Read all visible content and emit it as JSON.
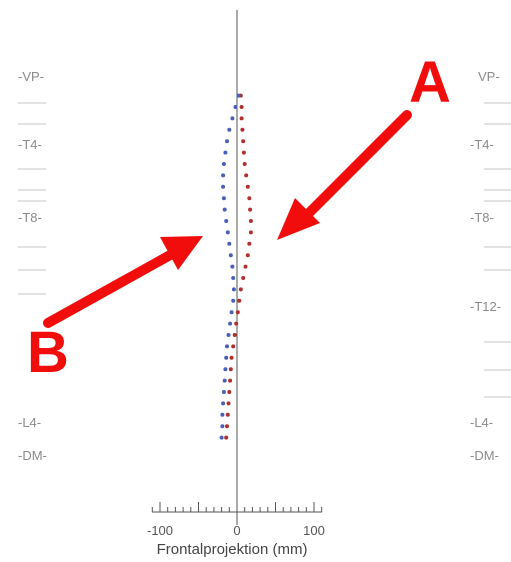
{
  "chart_data": {
    "type": "scatter",
    "xlabel": "Frontalprojektion (mm)",
    "xlim": [
      -120,
      120
    ],
    "ylim": [
      0,
      1
    ],
    "x_ticks": [
      "-100",
      "0",
      "100"
    ],
    "levels_left": [
      "-VP-",
      "-T4-",
      "-T8-",
      "-L4-",
      "-DM-"
    ],
    "levels_right": [
      "VP-",
      "-T4-",
      "-T8-",
      "-T12-",
      "-L4-",
      "-DM-"
    ],
    "series": [
      {
        "color": "#b03030",
        "points": [
          [
            5,
            0.02
          ],
          [
            6,
            0.05
          ],
          [
            6,
            0.08
          ],
          [
            7,
            0.11
          ],
          [
            8,
            0.14
          ],
          [
            9,
            0.17
          ],
          [
            10,
            0.2
          ],
          [
            12,
            0.23
          ],
          [
            14,
            0.26
          ],
          [
            16,
            0.29
          ],
          [
            17,
            0.32
          ],
          [
            18,
            0.35
          ],
          [
            18,
            0.38
          ],
          [
            16,
            0.41
          ],
          [
            14,
            0.44
          ],
          [
            11,
            0.47
          ],
          [
            8,
            0.5
          ],
          [
            5,
            0.53
          ],
          [
            3,
            0.56
          ],
          [
            1,
            0.59
          ],
          [
            -1,
            0.62
          ],
          [
            -3,
            0.65
          ],
          [
            -5,
            0.68
          ],
          [
            -7,
            0.71
          ],
          [
            -8,
            0.74
          ],
          [
            -9,
            0.77
          ],
          [
            -10,
            0.8
          ],
          [
            -11,
            0.83
          ],
          [
            -12,
            0.86
          ],
          [
            -13,
            0.89
          ],
          [
            -14,
            0.92
          ]
        ]
      },
      {
        "color": "#4a5fb8",
        "points": [
          [
            2,
            0.02
          ],
          [
            -2,
            0.05
          ],
          [
            -6,
            0.08
          ],
          [
            -10,
            0.11
          ],
          [
            -13,
            0.14
          ],
          [
            -15,
            0.17
          ],
          [
            -17,
            0.2
          ],
          [
            -18,
            0.23
          ],
          [
            -18,
            0.26
          ],
          [
            -17,
            0.29
          ],
          [
            -16,
            0.32
          ],
          [
            -14,
            0.35
          ],
          [
            -12,
            0.38
          ],
          [
            -10,
            0.41
          ],
          [
            -8,
            0.44
          ],
          [
            -6,
            0.47
          ],
          [
            -5,
            0.5
          ],
          [
            -4,
            0.53
          ],
          [
            -5,
            0.56
          ],
          [
            -7,
            0.59
          ],
          [
            -9,
            0.62
          ],
          [
            -11,
            0.65
          ],
          [
            -13,
            0.68
          ],
          [
            -14,
            0.71
          ],
          [
            -15,
            0.74
          ],
          [
            -16,
            0.77
          ],
          [
            -17,
            0.8
          ],
          [
            -18,
            0.83
          ],
          [
            -19,
            0.86
          ],
          [
            -19,
            0.89
          ],
          [
            -20,
            0.92
          ]
        ]
      }
    ]
  },
  "annotations": {
    "a_label": "A",
    "b_label": "B",
    "arrow_color": "#f20d0d"
  }
}
